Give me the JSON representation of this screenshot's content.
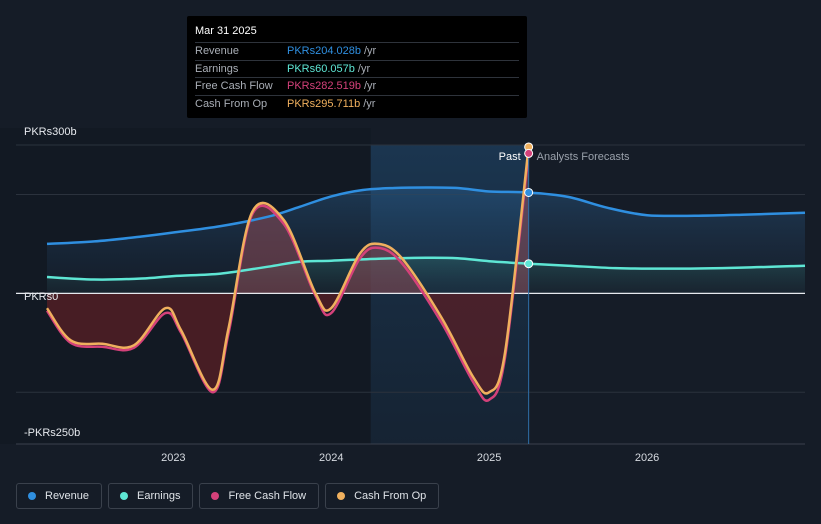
{
  "tooltip": {
    "date": "Mar 31 2025",
    "rows": [
      {
        "name": "Revenue",
        "value": "PKRs204.028b",
        "unit": "/yr",
        "color": "#2f8fe0"
      },
      {
        "name": "Earnings",
        "value": "PKRs60.057b",
        "unit": "/yr",
        "color": "#5ee6d4"
      },
      {
        "name": "Free Cash Flow",
        "value": "PKRs282.519b",
        "unit": "/yr",
        "color": "#d4417a"
      },
      {
        "name": "Cash From Op",
        "value": "PKRs295.711b",
        "unit": "/yr",
        "color": "#f0b05e"
      }
    ]
  },
  "labels": {
    "past": "Past",
    "forecast": "Analysts Forecasts"
  },
  "legend": [
    {
      "name": "Revenue",
      "color": "#2f8fe0"
    },
    {
      "name": "Earnings",
      "color": "#5ee6d4"
    },
    {
      "name": "Free Cash Flow",
      "color": "#d4417a"
    },
    {
      "name": "Cash From Op",
      "color": "#f0b05e"
    }
  ],
  "chart_data": {
    "type": "line",
    "y_ticks": [
      {
        "value": 300,
        "label": "PKRs300b"
      },
      {
        "value": 0,
        "label": "PKRs0"
      },
      {
        "value": -250,
        "label": "-PKRs250b"
      }
    ],
    "x_ticks": [
      {
        "value": 2023,
        "label": "2023"
      },
      {
        "value": 2024,
        "label": "2024"
      },
      {
        "value": 2025,
        "label": "2025"
      },
      {
        "value": 2026,
        "label": "2026"
      }
    ],
    "xlim": [
      2022.2,
      2027.0
    ],
    "ylim": [
      -250,
      300
    ],
    "past_end": 2025.25,
    "highlight_start": 2024.25,
    "series": [
      {
        "name": "Revenue",
        "color": "#2f8fe0",
        "points": [
          [
            2022.2,
            100
          ],
          [
            2022.5,
            105
          ],
          [
            2022.8,
            115
          ],
          [
            2023.0,
            123
          ],
          [
            2023.3,
            136
          ],
          [
            2023.6,
            155
          ],
          [
            2023.8,
            175
          ],
          [
            2024.0,
            196
          ],
          [
            2024.2,
            209
          ],
          [
            2024.4,
            213
          ],
          [
            2024.6,
            214
          ],
          [
            2024.8,
            213
          ],
          [
            2025.0,
            206
          ],
          [
            2025.25,
            204
          ],
          [
            2025.5,
            195
          ],
          [
            2025.75,
            173
          ],
          [
            2026.0,
            158
          ],
          [
            2026.3,
            157
          ],
          [
            2026.6,
            159
          ],
          [
            2027.0,
            163
          ]
        ]
      },
      {
        "name": "Earnings",
        "color": "#5ee6d4",
        "points": [
          [
            2022.2,
            33
          ],
          [
            2022.5,
            28
          ],
          [
            2022.8,
            30
          ],
          [
            2023.0,
            35
          ],
          [
            2023.3,
            40
          ],
          [
            2023.6,
            54
          ],
          [
            2023.8,
            64
          ],
          [
            2024.0,
            66
          ],
          [
            2024.3,
            70
          ],
          [
            2024.6,
            72
          ],
          [
            2024.8,
            71
          ],
          [
            2025.0,
            65
          ],
          [
            2025.25,
            60
          ],
          [
            2025.5,
            56
          ],
          [
            2025.8,
            51
          ],
          [
            2026.2,
            50
          ],
          [
            2026.6,
            52
          ],
          [
            2027.0,
            56
          ]
        ]
      },
      {
        "name": "Free Cash Flow",
        "color": "#d4417a",
        "points": [
          [
            2022.2,
            -35
          ],
          [
            2022.35,
            -100
          ],
          [
            2022.55,
            -108
          ],
          [
            2022.75,
            -110
          ],
          [
            2022.95,
            -40
          ],
          [
            2023.05,
            -80
          ],
          [
            2023.25,
            -200
          ],
          [
            2023.35,
            -80
          ],
          [
            2023.5,
            160
          ],
          [
            2023.7,
            140
          ],
          [
            2023.9,
            -5
          ],
          [
            2024.0,
            -40
          ],
          [
            2024.18,
            70
          ],
          [
            2024.3,
            92
          ],
          [
            2024.45,
            60
          ],
          [
            2024.7,
            -60
          ],
          [
            2024.9,
            -180
          ],
          [
            2025.0,
            -215
          ],
          [
            2025.1,
            -130
          ],
          [
            2025.25,
            283
          ]
        ]
      },
      {
        "name": "Cash From Op",
        "color": "#f0b05e",
        "points": [
          [
            2022.2,
            -30
          ],
          [
            2022.35,
            -95
          ],
          [
            2022.55,
            -102
          ],
          [
            2022.75,
            -105
          ],
          [
            2022.95,
            -30
          ],
          [
            2023.05,
            -75
          ],
          [
            2023.25,
            -195
          ],
          [
            2023.35,
            -70
          ],
          [
            2023.5,
            165
          ],
          [
            2023.7,
            148
          ],
          [
            2023.9,
            0
          ],
          [
            2024.0,
            -30
          ],
          [
            2024.18,
            80
          ],
          [
            2024.3,
            100
          ],
          [
            2024.45,
            70
          ],
          [
            2024.7,
            -50
          ],
          [
            2024.9,
            -170
          ],
          [
            2025.0,
            -200
          ],
          [
            2025.1,
            -120
          ],
          [
            2025.25,
            296
          ]
        ]
      }
    ]
  }
}
